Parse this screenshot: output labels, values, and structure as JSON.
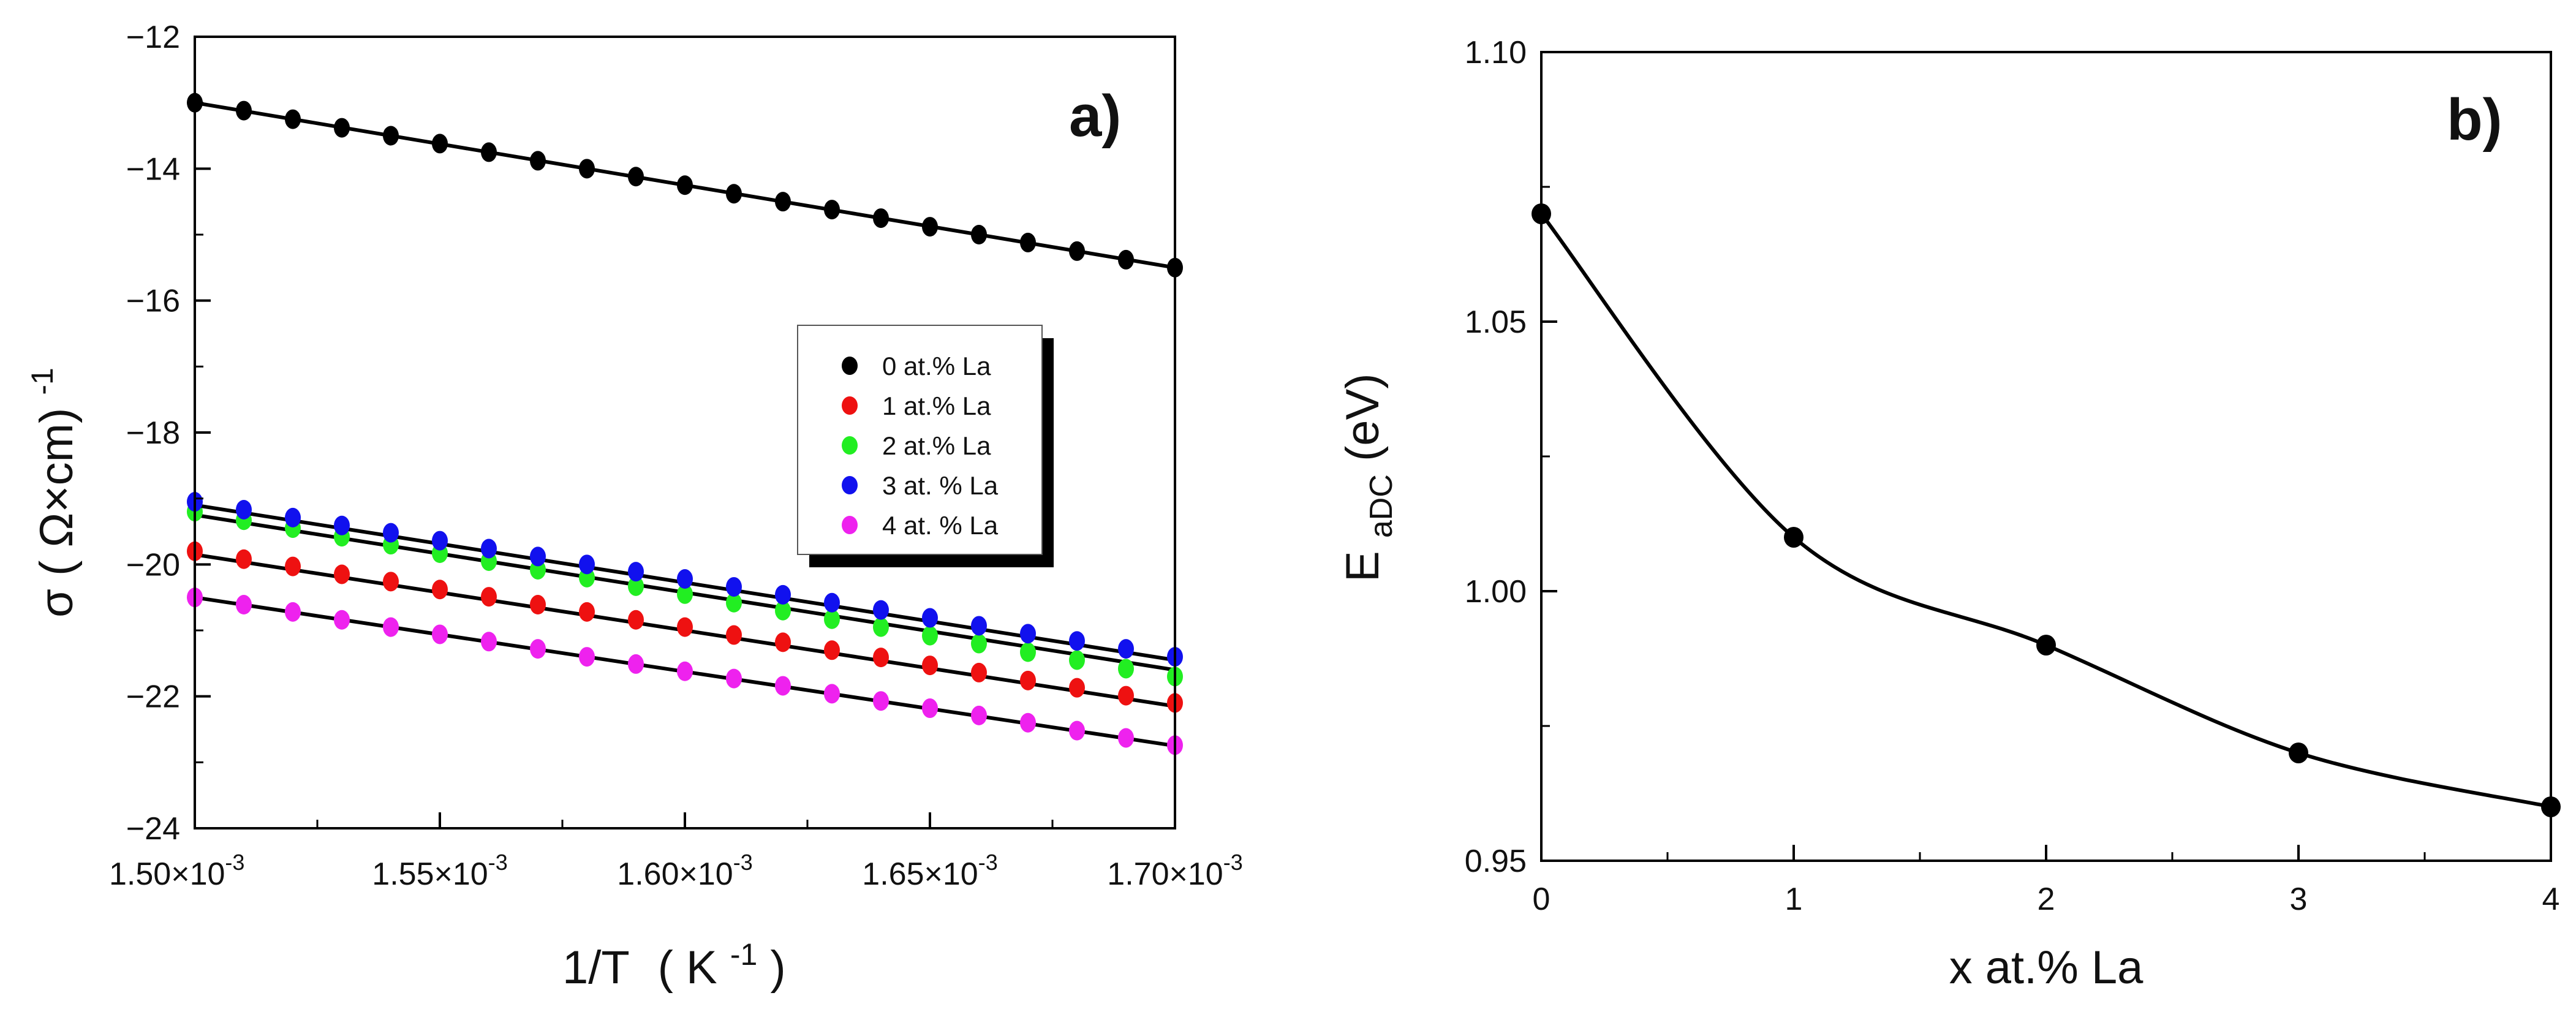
{
  "chart_data": [
    {
      "type": "scatter",
      "panel_label": "a)",
      "xlabel": "1/T",
      "xlabel_unit": "( K",
      "xlabel_unit_sup": "-1",
      "xlabel_unit_end": " )",
      "ylabel_main": "σ ( Ω×cm)",
      "ylabel_sup": "-1",
      "xlim": [
        0.0015,
        0.0017
      ],
      "ylim": [
        -24,
        -12
      ],
      "x_ticks": [
        {
          "value": 0.0015,
          "mantissa": "1.50×10",
          "exp": "-3"
        },
        {
          "value": 0.00155,
          "mantissa": "1.55×10",
          "exp": "-3"
        },
        {
          "value": 0.0016,
          "mantissa": "1.60×10",
          "exp": "-3"
        },
        {
          "value": 0.00165,
          "mantissa": "1.65×10",
          "exp": "-3"
        },
        {
          "value": 0.0017,
          "mantissa": "1.70×10",
          "exp": "-3"
        }
      ],
      "y_ticks": [
        {
          "value": -24,
          "label": "−24"
        },
        {
          "value": -22,
          "label": "−22"
        },
        {
          "value": -20,
          "label": "−20"
        },
        {
          "value": -18,
          "label": "−18"
        },
        {
          "value": -16,
          "label": "−16"
        },
        {
          "value": -14,
          "label": "−14"
        },
        {
          "value": -12,
          "label": "−12"
        }
      ],
      "x_points": [
        0.0015,
        0.00151,
        0.00152,
        0.00153,
        0.00154,
        0.00155,
        0.00156,
        0.00157,
        0.00158,
        0.00159,
        0.0016,
        0.00161,
        0.00162,
        0.00163,
        0.00164,
        0.00165,
        0.00166,
        0.00167,
        0.00168,
        0.00169,
        0.0017
      ],
      "series": [
        {
          "name": "0 at.% La",
          "color": "#000000",
          "fit_start": -13.0,
          "fit_end": -15.5,
          "values": [
            -13.0,
            -13.12,
            -13.25,
            -13.38,
            -13.5,
            -13.62,
            -13.75,
            -13.88,
            -14.0,
            -14.12,
            -14.25,
            -14.38,
            -14.5,
            -14.62,
            -14.75,
            -14.88,
            -15.0,
            -15.12,
            -15.25,
            -15.38,
            -15.5
          ]
        },
        {
          "name": "1 at.% La",
          "color": "#ee1111",
          "fit_start": -19.85,
          "fit_end": -22.15,
          "values": [
            -19.8,
            -19.92,
            -20.03,
            -20.15,
            -20.26,
            -20.38,
            -20.49,
            -20.61,
            -20.72,
            -20.84,
            -20.95,
            -21.07,
            -21.18,
            -21.3,
            -21.41,
            -21.53,
            -21.64,
            -21.76,
            -21.87,
            -21.99,
            -22.1
          ]
        },
        {
          "name": "2 at.% La",
          "color": "#22ee22",
          "fit_start": -19.25,
          "fit_end": -21.6,
          "values": [
            -19.2,
            -19.33,
            -19.45,
            -19.58,
            -19.7,
            -19.83,
            -19.95,
            -20.08,
            -20.2,
            -20.33,
            -20.45,
            -20.58,
            -20.7,
            -20.83,
            -20.95,
            -21.08,
            -21.2,
            -21.33,
            -21.45,
            -21.58,
            -21.7
          ]
        },
        {
          "name": "3 at. % La",
          "color": "#1111ee",
          "fit_start": -19.1,
          "fit_end": -21.45,
          "values": [
            -19.05,
            -19.17,
            -19.29,
            -19.41,
            -19.52,
            -19.64,
            -19.76,
            -19.88,
            -20.0,
            -20.11,
            -20.22,
            -20.34,
            -20.46,
            -20.58,
            -20.69,
            -20.81,
            -20.93,
            -21.05,
            -21.16,
            -21.28,
            -21.4
          ]
        },
        {
          "name": "4 at. % La",
          "color": "#ee22ee",
          "fit_start": -20.5,
          "fit_end": -22.75,
          "values": [
            -20.5,
            -20.61,
            -20.72,
            -20.84,
            -20.95,
            -21.06,
            -21.17,
            -21.28,
            -21.4,
            -21.51,
            -21.62,
            -21.73,
            -21.84,
            -21.96,
            -22.07,
            -22.18,
            -22.29,
            -22.4,
            -22.52,
            -22.63,
            -22.74
          ]
        }
      ],
      "legend_position": "center-right"
    },
    {
      "type": "line",
      "panel_label": "b)",
      "xlabel": "x at.% La",
      "ylabel_main": "E",
      "ylabel_sub": "aDC",
      "ylabel_end": " (eV)",
      "xlim": [
        0,
        4
      ],
      "ylim": [
        0.95,
        1.1
      ],
      "x_ticks": [
        {
          "value": 0,
          "label": "0"
        },
        {
          "value": 1,
          "label": "1"
        },
        {
          "value": 2,
          "label": "2"
        },
        {
          "value": 3,
          "label": "3"
        },
        {
          "value": 4,
          "label": "4"
        }
      ],
      "y_ticks": [
        {
          "value": 0.95,
          "label": "0.95"
        },
        {
          "value": 1.0,
          "label": "1.00"
        },
        {
          "value": 1.05,
          "label": "1.05"
        },
        {
          "value": 1.1,
          "label": "1.10"
        }
      ],
      "x": [
        0,
        1,
        2,
        3,
        4
      ],
      "values": [
        1.07,
        1.01,
        0.99,
        0.97,
        0.96
      ],
      "color": "#000000"
    }
  ]
}
